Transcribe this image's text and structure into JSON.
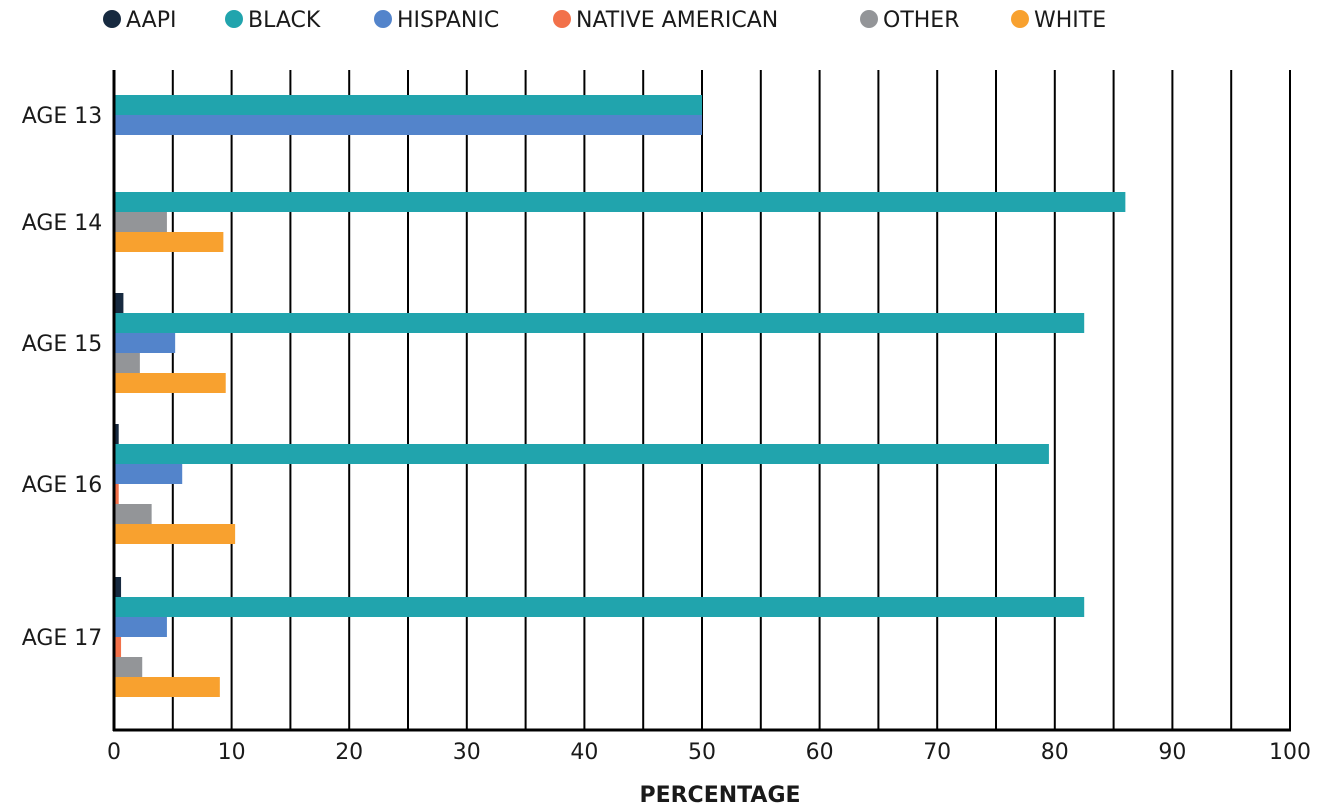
{
  "chart_data": {
    "type": "bar",
    "orientation": "horizontal",
    "categories": [
      "AGE 13",
      "AGE 14",
      "AGE 15",
      "AGE 16",
      "AGE 17"
    ],
    "series": [
      {
        "name": "AAPI",
        "color": "#172a40",
        "values": [
          0,
          0,
          0.8,
          0.4,
          0.6
        ]
      },
      {
        "name": "BLACK",
        "color": "#21a4ad",
        "values": [
          50,
          86,
          82.5,
          79.5,
          82.5
        ]
      },
      {
        "name": "HISPANIC",
        "color": "#5384cb",
        "values": [
          50,
          0,
          5.2,
          5.8,
          4.5
        ]
      },
      {
        "name": "NATIVE AMERICAN",
        "color": "#f2714a",
        "values": [
          0,
          0,
          0,
          0.4,
          0.6
        ]
      },
      {
        "name": "OTHER",
        "color": "#939598",
        "values": [
          0,
          4.5,
          2.2,
          3.2,
          2.4
        ]
      },
      {
        "name": "WHITE",
        "color": "#f8a12f",
        "values": [
          0,
          9.3,
          9.5,
          10.3,
          9
        ]
      }
    ],
    "xlabel": "PERCENTAGE",
    "xlim": [
      0,
      100
    ],
    "xticks": [
      "0",
      "10",
      "20",
      "30",
      "40",
      "50",
      "60",
      "70",
      "80",
      "90",
      "100"
    ],
    "grid": "vertical lines every 5",
    "legend": "top"
  }
}
